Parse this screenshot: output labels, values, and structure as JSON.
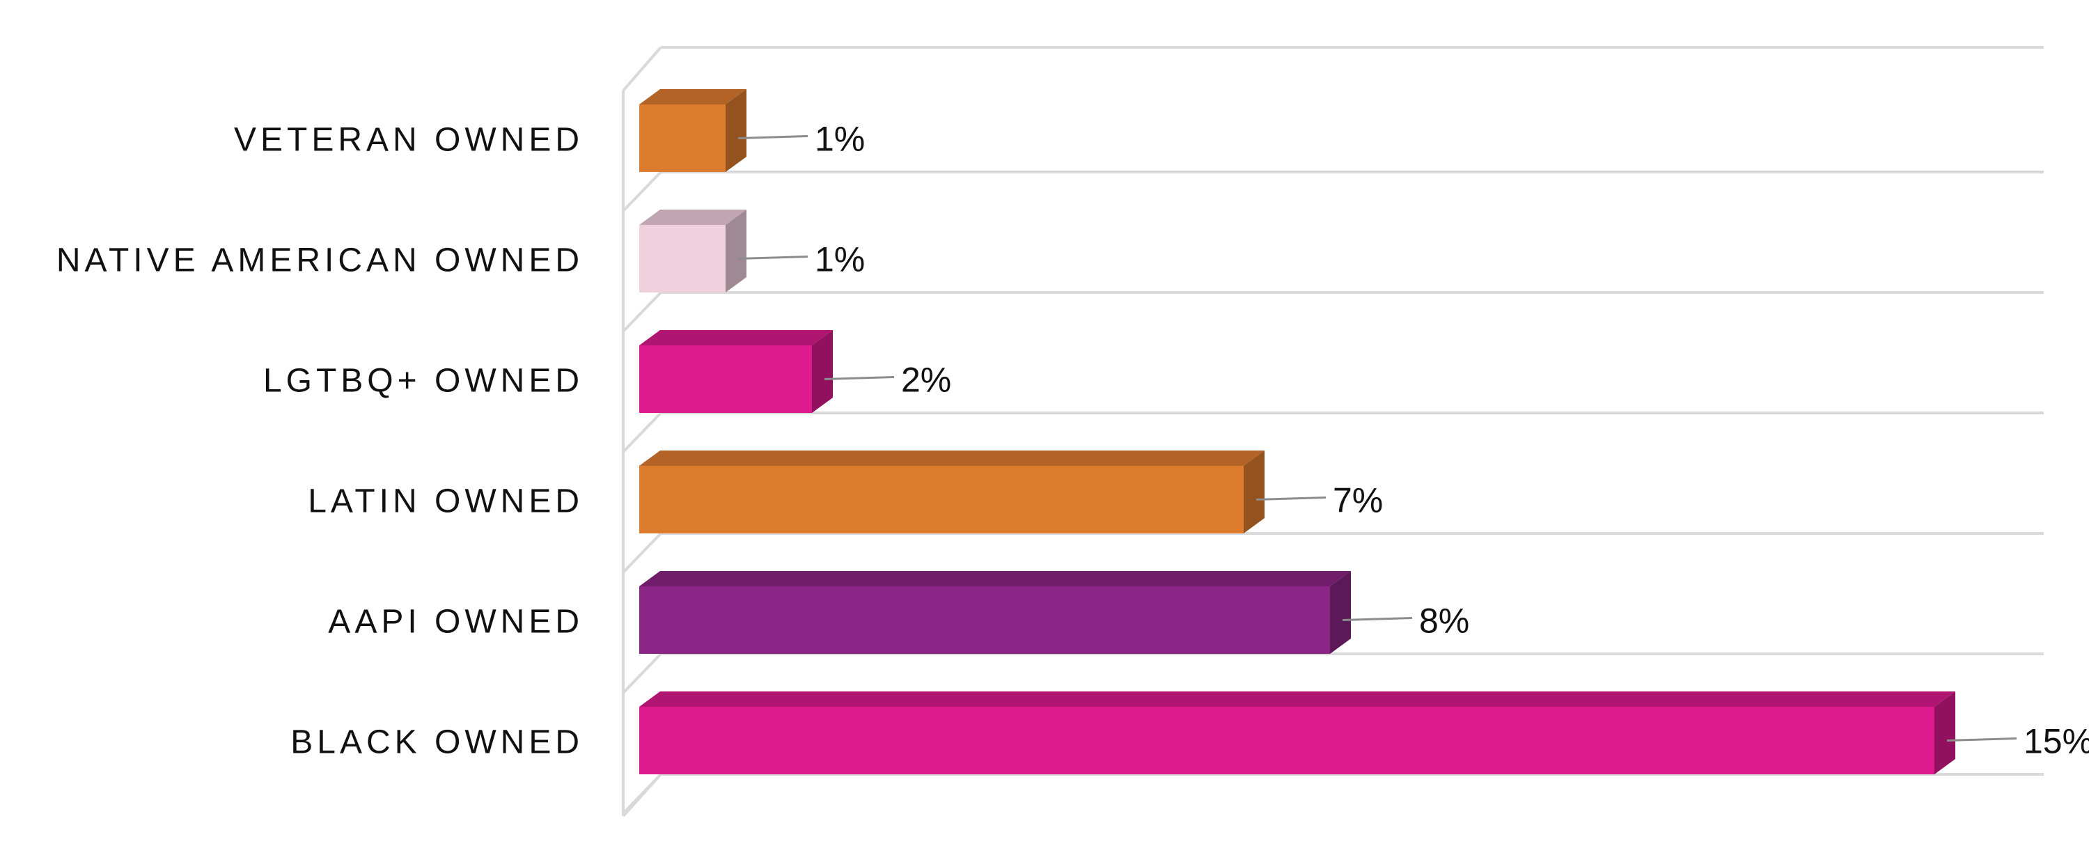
{
  "chart_data": {
    "type": "bar",
    "orientation": "horizontal",
    "style": "3d",
    "categories": [
      "VETERAN OWNED",
      "NATIVE AMERICAN OWNED",
      "LGTBQ+ OWNED",
      "LATIN OWNED",
      "AAPI OWNED",
      "BLACK OWNED"
    ],
    "values": [
      1,
      1,
      2,
      7,
      8,
      15
    ],
    "value_labels": [
      "1%",
      "1%",
      "2%",
      "7%",
      "8%",
      "15%"
    ],
    "bar_colors": [
      "#DE7C2E",
      "#F1D0DE",
      "#DD1A8E",
      "#DE7C2E",
      "#8C2686",
      "#DD1A8E"
    ],
    "xlim": [
      0,
      16
    ],
    "title": "",
    "xlabel": "",
    "ylabel": "",
    "grid": true,
    "legend": "none"
  }
}
